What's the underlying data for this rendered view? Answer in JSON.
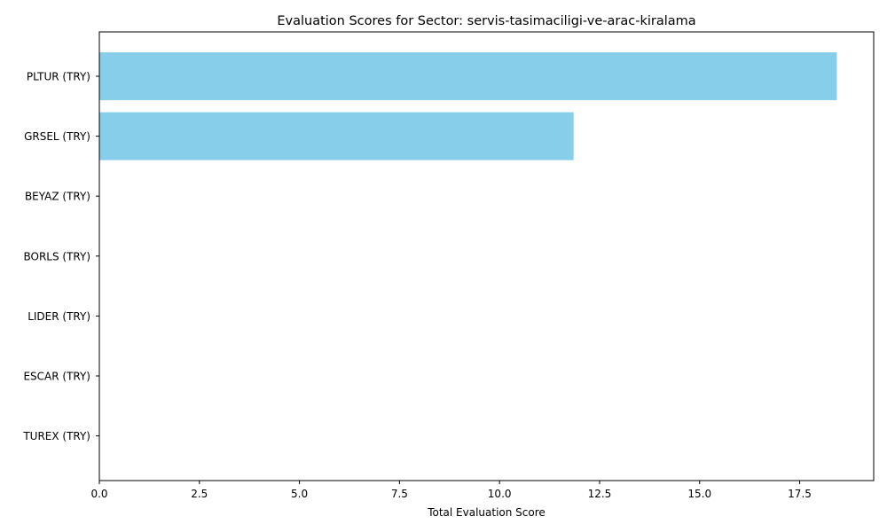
{
  "chart_data": {
    "type": "bar",
    "orientation": "horizontal",
    "title": "Evaluation Scores for Sector: servis-tasimaciligi-ve-arac-kiralama",
    "xlabel": "Total Evaluation Score",
    "ylabel": "",
    "categories": [
      "PLTUR (TRY)",
      "GRSEL (TRY)",
      "BEYAZ (TRY)",
      "BORLS (TRY)",
      "LIDER (TRY)",
      "ESCAR (TRY)",
      "TUREX (TRY)"
    ],
    "values": [
      18.43,
      11.85,
      0,
      0,
      0,
      0,
      0
    ],
    "xlim": [
      0,
      19.35
    ],
    "xticks": [
      0.0,
      2.5,
      5.0,
      7.5,
      10.0,
      12.5,
      15.0,
      17.5
    ],
    "xtick_labels": [
      "0.0",
      "2.5",
      "5.0",
      "7.5",
      "10.0",
      "12.5",
      "15.0",
      "17.5"
    ],
    "bar_color": "#87ceeb",
    "grid": false,
    "legend": "none"
  }
}
